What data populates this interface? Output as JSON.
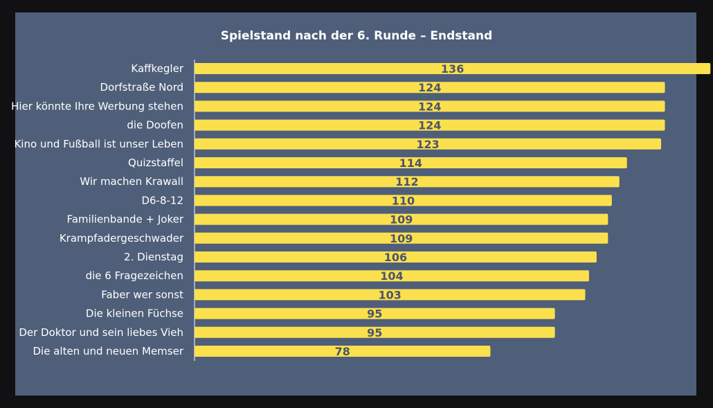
{
  "chart_data": {
    "type": "bar",
    "orientation": "horizontal",
    "title": "Spielstand nach der 6. Runde – Endstand",
    "xlabel": "",
    "ylabel": "",
    "xlim": [
      0,
      136
    ],
    "grid": false,
    "data_labels": true,
    "colors": {
      "bar": "#fbe04d",
      "background": "#4f5e79",
      "value_label": "#4a5470",
      "text": "#ffffff"
    },
    "categories": [
      "Kaffkegler",
      "Dorfstraße Nord",
      "Hier könnte Ihre Werbung stehen",
      "die Doofen",
      "Kino und Fußball ist unser Leben",
      "Quizstaffel",
      "Wir machen Krawall",
      "D6-8-12",
      "Familienbande + Joker",
      "Krampfadergeschwader",
      "2. Dienstag",
      "die 6 Fragezeichen",
      "Faber wer sonst",
      "Die kleinen Füchse",
      "Der Doktor und sein liebes Vieh",
      "Die alten und neuen Memser"
    ],
    "values": [
      136,
      124,
      124,
      124,
      123,
      114,
      112,
      110,
      109,
      109,
      106,
      104,
      103,
      95,
      95,
      78
    ]
  }
}
